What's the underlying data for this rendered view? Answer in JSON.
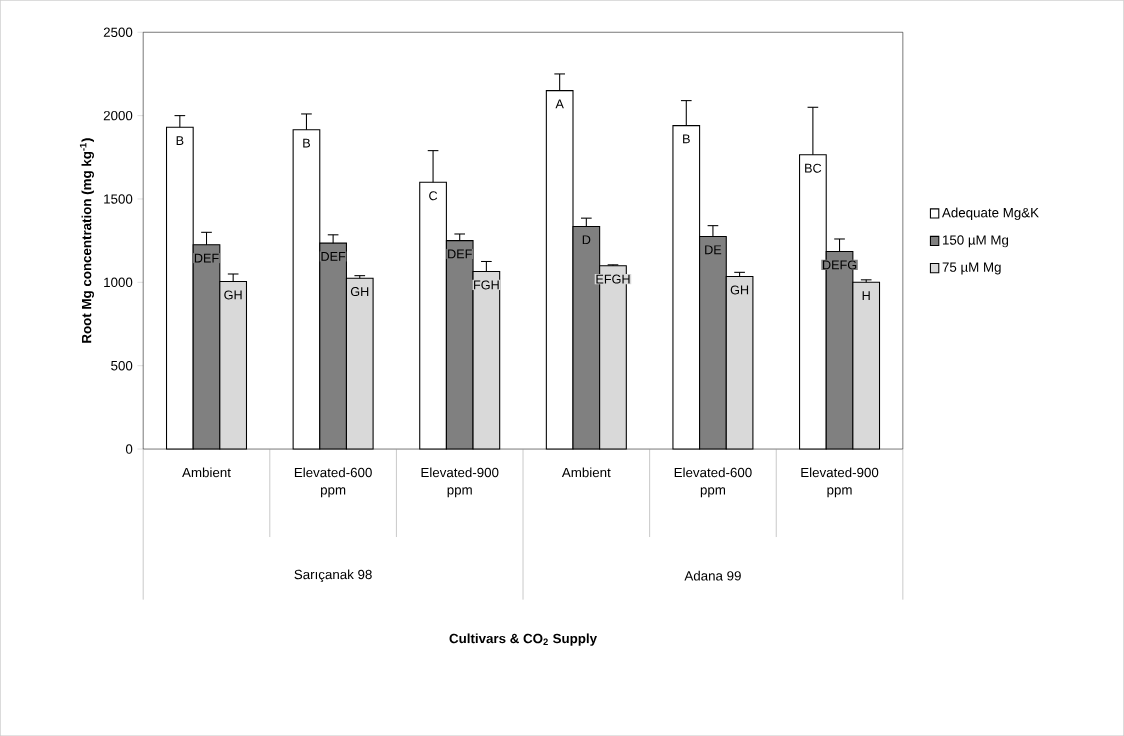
{
  "chart_data": {
    "type": "bar",
    "ylabel": "Root Mg concentration  (mg kg$^{-1}$)",
    "categories": [
      "Ambient",
      "Elevated-600 ppm",
      "Elevated-900 ppm",
      "Ambient",
      "Elevated-600 ppm",
      "Elevated-900 ppm"
    ],
    "series": [
      {
        "name": "Adequate Mg&K",
        "color": "#ffffff",
        "values": [
          1930,
          1915,
          1600,
          2150,
          1940,
          1765
        ],
        "errors": [
          70,
          95,
          190,
          100,
          150,
          285
        ],
        "value_labels": [
          "B",
          "B",
          "C",
          "A",
          "B",
          "BC"
        ]
      },
      {
        "name": "150 µM Mg",
        "color": "#808080",
        "values": [
          1225,
          1235,
          1250,
          1335,
          1275,
          1185
        ],
        "errors": [
          75,
          50,
          40,
          50,
          65,
          75
        ],
        "value_labels": [
          "DEF",
          "DEF",
          "DEF",
          "D",
          "DE",
          "DEFG"
        ]
      },
      {
        "name": "75 µM Mg",
        "color": "#d9d9d9",
        "values": [
          1005,
          1025,
          1065,
          1100,
          1035,
          1000
        ],
        "errors": [
          45,
          15,
          60,
          5,
          25,
          15
        ],
        "value_labels": [
          "GH",
          "GH",
          "FGH",
          "EFGH",
          "GH",
          "H"
        ]
      }
    ],
    "annotations": [
      "Sarıçanak 98",
      "Adana 99",
      "Cultivars & CO$_{2}$ Supply"
    ],
    "ylim": [
      0,
      2500
    ],
    "yticks": [
      0,
      500,
      1000,
      1500,
      2000,
      2500
    ],
    "grid": false,
    "legend": "right"
  }
}
